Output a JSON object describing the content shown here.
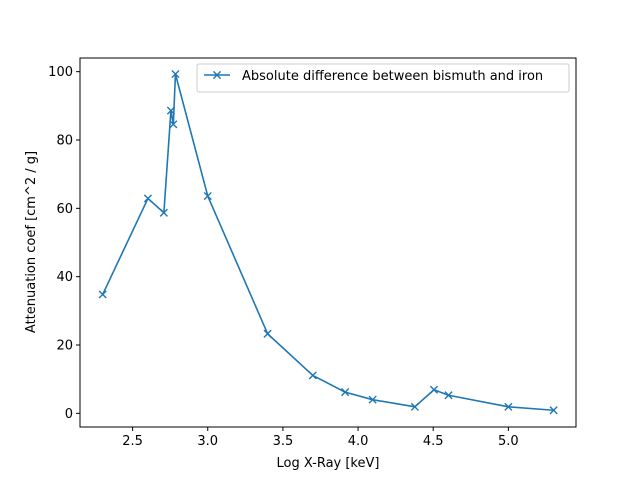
{
  "chart_data": {
    "type": "line",
    "title": "",
    "xlabel": "Log X-Ray [keV]",
    "ylabel": "Attenuation coef [cm^2 / g]",
    "xlim": [
      2.15,
      5.45
    ],
    "ylim": [
      -4,
      104
    ],
    "xticks": [
      2.5,
      3.0,
      3.5,
      4.0,
      4.5,
      5.0
    ],
    "xtick_labels": [
      "2.5",
      "3.0",
      "3.5",
      "4.0",
      "4.5",
      "5.0"
    ],
    "yticks": [
      0,
      20,
      40,
      60,
      80,
      100
    ],
    "ytick_labels": [
      "0",
      "20",
      "40",
      "60",
      "80",
      "100"
    ],
    "grid": false,
    "legend_position": "top-right",
    "marker": "x",
    "color": "#1f77b4",
    "series": [
      {
        "name": "Absolute difference between bismuth and iron",
        "x": [
          2.301,
          2.602,
          2.708,
          2.755,
          2.771,
          2.785,
          3.0,
          3.398,
          3.699,
          3.914,
          4.097,
          4.378,
          4.505,
          4.602,
          5.0,
          5.301
        ],
        "y": [
          34.8,
          62.9,
          58.7,
          88.6,
          84.6,
          99.3,
          63.6,
          23.3,
          11.1,
          6.2,
          4.0,
          1.9,
          6.9,
          5.3,
          1.9,
          0.9
        ]
      }
    ]
  }
}
